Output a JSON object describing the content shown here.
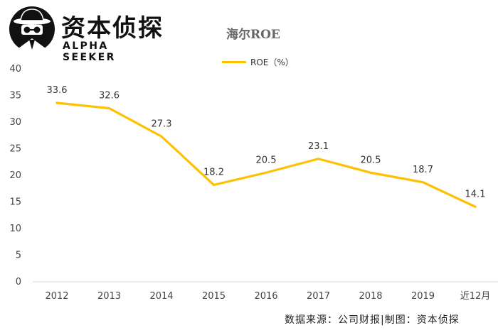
{
  "logo": {
    "name": "资本侦探",
    "subtitle": "ALPHA SEEKER"
  },
  "source": "数据来源：公司财报|制图：资本侦探",
  "chart_data": {
    "type": "line",
    "title": "海尔ROE",
    "categories": [
      "2012",
      "2013",
      "2014",
      "2015",
      "2016",
      "2017",
      "2018",
      "2019",
      "近12月"
    ],
    "series": [
      {
        "name": "ROE（%）",
        "values": [
          33.6,
          32.6,
          27.3,
          18.2,
          20.5,
          23.1,
          20.5,
          18.7,
          14.1
        ],
        "color": "#FFC000"
      }
    ],
    "ylim": [
      0,
      40
    ],
    "yticks": [
      0,
      5,
      10,
      15,
      20,
      25,
      30,
      35,
      40
    ],
    "grid": false,
    "legend": "top-center",
    "data_labels": true
  }
}
